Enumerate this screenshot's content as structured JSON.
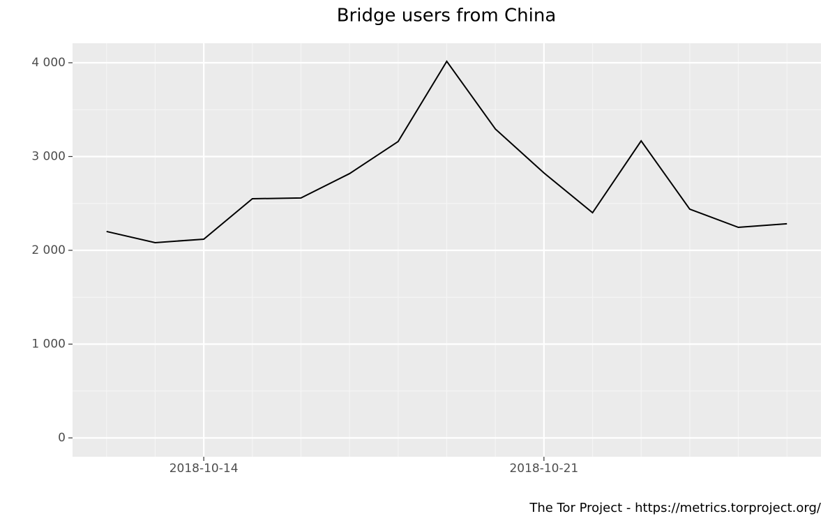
{
  "chart_data": {
    "type": "line",
    "title": "Bridge users from China",
    "caption": "The Tor Project - https://metrics.torproject.org/",
    "x": [
      "2018-10-12",
      "2018-10-13",
      "2018-10-14",
      "2018-10-15",
      "2018-10-16",
      "2018-10-17",
      "2018-10-18",
      "2018-10-19",
      "2018-10-20",
      "2018-10-21",
      "2018-10-22",
      "2018-10-23",
      "2018-10-24",
      "2018-10-25",
      "2018-10-26"
    ],
    "series": [
      {
        "color": "#000000",
        "values": [
          2201,
          2082,
          2119,
          2550,
          2558,
          2818,
          3160,
          4015,
          3294,
          2825,
          2401,
          3167,
          2439,
          2245,
          2283
        ]
      }
    ],
    "xticks": [
      "2018-10-14",
      "2018-10-21"
    ],
    "ylim": [
      -201,
      4208
    ],
    "yticks": [
      0,
      {
        "value": 1000,
        "label": "1 000"
      },
      {
        "value": 2000,
        "label": "2 000"
      },
      {
        "value": 3000,
        "label": "3 000"
      },
      {
        "value": 4000,
        "label": "4 000"
      }
    ],
    "grid": true
  }
}
